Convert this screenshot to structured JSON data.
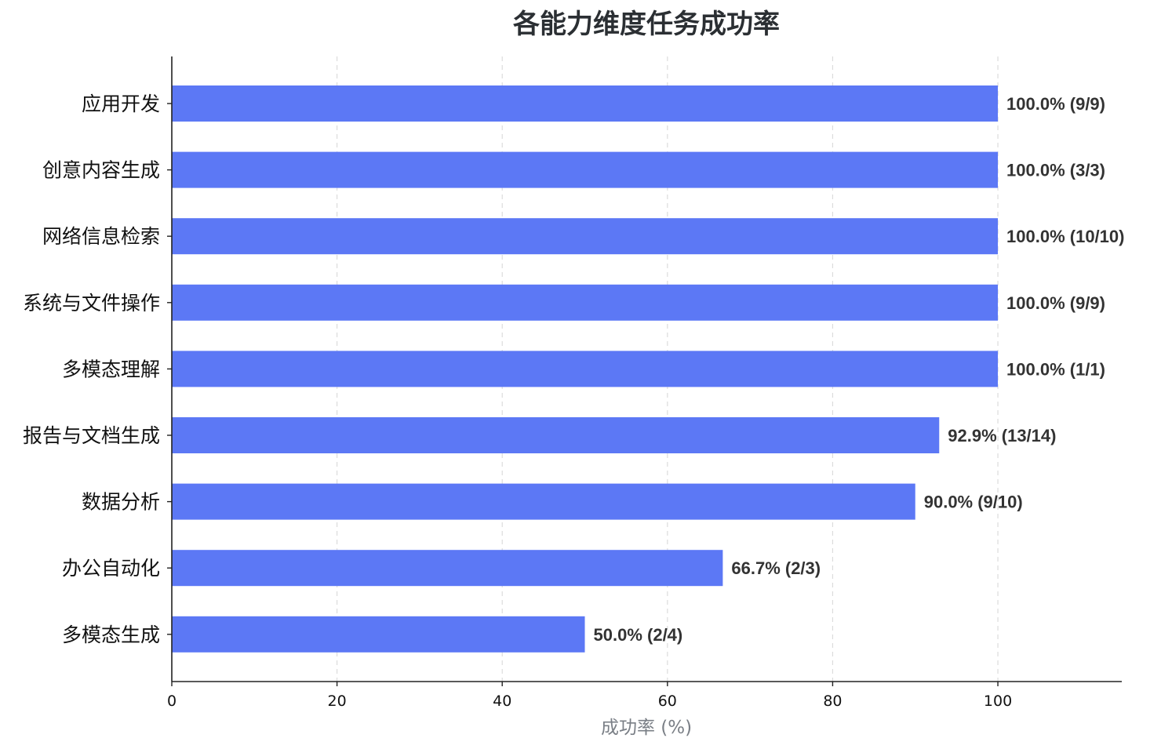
{
  "chart_data": {
    "type": "bar",
    "orientation": "horizontal",
    "title": "各能力维度任务成功率",
    "xlabel": "成功率 (%)",
    "ylabel": "",
    "xlim": [
      0,
      115
    ],
    "xticks": [
      0,
      20,
      40,
      60,
      80,
      100
    ],
    "grid": "vertical dashed",
    "bar_color": "#5c78f5",
    "categories": [
      "应用开发",
      "创意内容生成",
      "网络信息检索",
      "系统与文件操作",
      "多模态理解",
      "报告与文档生成",
      "数据分析",
      "办公自动化",
      "多模态生成"
    ],
    "values": [
      100.0,
      100.0,
      100.0,
      100.0,
      100.0,
      92.9,
      90.0,
      66.7,
      50.0
    ],
    "labels": [
      "100.0%  (9/9)",
      "100.0%  (3/3)",
      "100.0%  (10/10)",
      "100.0%  (9/9)",
      "100.0%  (1/1)",
      "92.9%  (13/14)",
      "90.0%  (9/10)",
      "66.7%  (2/3)",
      "50.0%  (2/4)"
    ]
  }
}
